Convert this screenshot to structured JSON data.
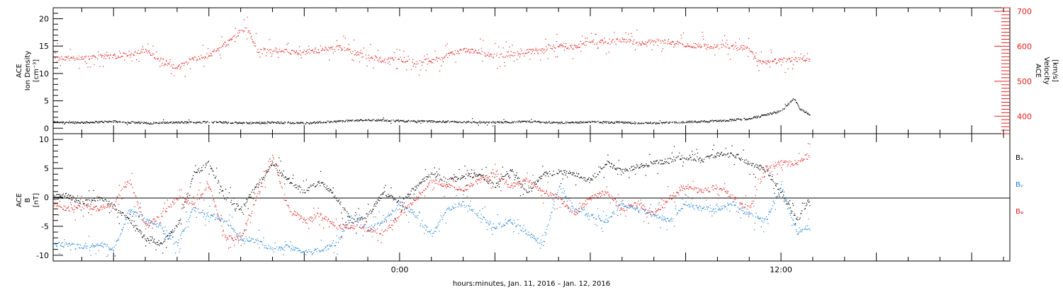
{
  "chart_data": [
    {
      "type": "scatter",
      "panel": "top",
      "ylabel_left": [
        "ACE",
        "Ion Density",
        "[cm⁻³]"
      ],
      "ylabel_right": [
        "ACE",
        "Velocity",
        "[km/s]"
      ],
      "ylim_left": [
        -1,
        22
      ],
      "yticks_left": [
        "0",
        "5",
        "10",
        "15",
        "20"
      ],
      "ylim_right": [
        350,
        710
      ],
      "yticks_right": [
        "400",
        "500",
        "600",
        "700"
      ],
      "x_range_hours": [
        -10.9,
        19.2
      ],
      "series": [
        {
          "axis": "left",
          "color": "#000000",
          "points": [
            [
              -10.9,
              1.2
            ],
            [
              -10,
              1.1
            ],
            [
              -9,
              1.3
            ],
            [
              -8,
              1.0
            ],
            [
              -7,
              1.1
            ],
            [
              -6,
              1.2
            ],
            [
              -5,
              1.0
            ],
            [
              -4,
              1.1
            ],
            [
              -3,
              1.0
            ],
            [
              -2,
              1.3
            ],
            [
              -1,
              1.6
            ],
            [
              0,
              1.4
            ],
            [
              1,
              1.3
            ],
            [
              2,
              1.2
            ],
            [
              3,
              1.1
            ],
            [
              4,
              1.3
            ],
            [
              5,
              1.0
            ],
            [
              6,
              1.2
            ],
            [
              7,
              1.1
            ],
            [
              8,
              1.0
            ],
            [
              9,
              1.2
            ],
            [
              10,
              1.4
            ],
            [
              11,
              1.8
            ],
            [
              11.5,
              2.5
            ],
            [
              12,
              3.2
            ],
            [
              12.4,
              5.5
            ],
            [
              12.6,
              3.5
            ],
            [
              12.9,
              2.6
            ]
          ]
        },
        {
          "axis": "right",
          "color": "#e0201c",
          "points": [
            [
              -10.9,
              575
            ],
            [
              -10.5,
              565
            ],
            [
              -10,
              570
            ],
            [
              -9,
              572
            ],
            [
              -8.5,
              580
            ],
            [
              -8,
              588
            ],
            [
              -7.5,
              560
            ],
            [
              -7,
              540
            ],
            [
              -6.5,
              565
            ],
            [
              -6,
              575
            ],
            [
              -5.5,
              605
            ],
            [
              -5,
              645
            ],
            [
              -4.8,
              655
            ],
            [
              -4.5,
              590
            ],
            [
              -4,
              588
            ],
            [
              -3.5,
              585
            ],
            [
              -3,
              583
            ],
            [
              -2.5,
              590
            ],
            [
              -2,
              600
            ],
            [
              -1.5,
              585
            ],
            [
              -1,
              570
            ],
            [
              -0.5,
              560
            ],
            [
              0,
              565
            ],
            [
              0.5,
              555
            ],
            [
              1,
              560
            ],
            [
              1.5,
              575
            ],
            [
              2,
              590
            ],
            [
              2.5,
              585
            ],
            [
              3,
              572
            ],
            [
              3.5,
              580
            ],
            [
              4,
              585
            ],
            [
              4.5,
              590
            ],
            [
              5,
              605
            ],
            [
              5.5,
              598
            ],
            [
              6,
              612
            ],
            [
              6.5,
              615
            ],
            [
              7,
              620
            ],
            [
              7.5,
              610
            ],
            [
              8,
              618
            ],
            [
              8.5,
              612
            ],
            [
              9,
              605
            ],
            [
              9.5,
              602
            ],
            [
              10,
              600
            ],
            [
              10.5,
              600
            ],
            [
              11,
              595
            ],
            [
              11.2,
              560
            ],
            [
              11.5,
              555
            ],
            [
              12,
              560
            ],
            [
              12.5,
              565
            ],
            [
              12.9,
              560
            ]
          ]
        }
      ]
    },
    {
      "type": "scatter",
      "panel": "bottom",
      "ylabel": [
        "ACE",
        "B",
        "[nT]"
      ],
      "ylim": [
        -11,
        11
      ],
      "yticks": [
        "-10",
        "-5",
        "0",
        "5",
        "10"
      ],
      "x_range_hours": [
        -10.9,
        19.2
      ],
      "legend": [
        {
          "text": "Bₓ",
          "color": "#000000"
        },
        {
          "text": "Bᵧ",
          "color": "#1a7fd4"
        },
        {
          "text": "Bᵩ",
          "color": "#e0201c"
        }
      ],
      "series": [
        {
          "name": "Bₓ",
          "color": "#000000",
          "points": [
            [
              -10.9,
              0
            ],
            [
              -10.5,
              0.5
            ],
            [
              -10,
              -1
            ],
            [
              -9.5,
              0
            ],
            [
              -9,
              -1.5
            ],
            [
              -8.5,
              -4
            ],
            [
              -8,
              -7
            ],
            [
              -7.5,
              -8
            ],
            [
              -7,
              -5
            ],
            [
              -6.5,
              4
            ],
            [
              -6,
              6
            ],
            [
              -5.5,
              0
            ],
            [
              -5,
              -2
            ],
            [
              -4.5,
              2
            ],
            [
              -4,
              6
            ],
            [
              -3.5,
              3
            ],
            [
              -3,
              1
            ],
            [
              -2.5,
              3
            ],
            [
              -2,
              0
            ],
            [
              -1.5,
              -4
            ],
            [
              -1,
              -3
            ],
            [
              -0.5,
              1
            ],
            [
              0,
              -1
            ],
            [
              0.5,
              2
            ],
            [
              1,
              4
            ],
            [
              1.5,
              3
            ],
            [
              2,
              3.5
            ],
            [
              2.5,
              4
            ],
            [
              3,
              2
            ],
            [
              3.5,
              5
            ],
            [
              4,
              1
            ],
            [
              4.5,
              4
            ],
            [
              5,
              4.5
            ],
            [
              5.5,
              4
            ],
            [
              6,
              3
            ],
            [
              6.5,
              6
            ],
            [
              7,
              4.5
            ],
            [
              7.5,
              5.5
            ],
            [
              8,
              6
            ],
            [
              8.5,
              6.5
            ],
            [
              9,
              7
            ],
            [
              9.5,
              6.5
            ],
            [
              10,
              7.5
            ],
            [
              10.5,
              7.5
            ],
            [
              11,
              6
            ],
            [
              11.5,
              5
            ],
            [
              12,
              1
            ],
            [
              12.5,
              -4
            ],
            [
              12.9,
              0
            ]
          ]
        },
        {
          "name": "Bᵧ",
          "color": "#1a7fd4",
          "points": [
            [
              -10.9,
              -8
            ],
            [
              -10.5,
              -8
            ],
            [
              -10,
              -8.5
            ],
            [
              -9.5,
              -8
            ],
            [
              -9,
              -9
            ],
            [
              -8.5,
              -2
            ],
            [
              -8,
              -4
            ],
            [
              -7.5,
              -5
            ],
            [
              -7,
              -8
            ],
            [
              -6.5,
              -2
            ],
            [
              -6,
              -3
            ],
            [
              -5.5,
              -4
            ],
            [
              -5,
              -7
            ],
            [
              -4.5,
              -7.5
            ],
            [
              -4,
              -9
            ],
            [
              -3.5,
              -8.5
            ],
            [
              -3,
              -9.5
            ],
            [
              -2.5,
              -9
            ],
            [
              -2,
              -8
            ],
            [
              -1.5,
              -3
            ],
            [
              -1,
              -5.5
            ],
            [
              -0.5,
              -4
            ],
            [
              0,
              -1
            ],
            [
              0.5,
              -3
            ],
            [
              1,
              -6.5
            ],
            [
              1.5,
              -2
            ],
            [
              2,
              -1
            ],
            [
              2.5,
              -3
            ],
            [
              3,
              -5
            ],
            [
              3.5,
              -4
            ],
            [
              4,
              -6
            ],
            [
              4.5,
              -8
            ],
            [
              5,
              2
            ],
            [
              5.5,
              -2
            ],
            [
              6,
              -3
            ],
            [
              6.5,
              -4
            ],
            [
              7,
              -1
            ],
            [
              7.5,
              -2
            ],
            [
              8,
              -3
            ],
            [
              8.5,
              -4
            ],
            [
              9,
              -1
            ],
            [
              9.5,
              -2
            ],
            [
              10,
              -2
            ],
            [
              10.5,
              -1
            ],
            [
              11,
              -3
            ],
            [
              11.5,
              -4
            ],
            [
              12,
              2
            ],
            [
              12.5,
              -6
            ],
            [
              12.9,
              -5
            ]
          ]
        },
        {
          "name": "Bᵩ",
          "color": "#e0201c",
          "points": [
            [
              -10.9,
              -1
            ],
            [
              -10.5,
              -2
            ],
            [
              -10,
              -1.5
            ],
            [
              -9.5,
              -2
            ],
            [
              -9,
              -1
            ],
            [
              -8.5,
              3
            ],
            [
              -8,
              -5
            ],
            [
              -7.5,
              -3
            ],
            [
              -7,
              0
            ],
            [
              -6.5,
              -1
            ],
            [
              -6,
              2
            ],
            [
              -5.5,
              -7
            ],
            [
              -5,
              -7
            ],
            [
              -4.5,
              0
            ],
            [
              -4,
              7
            ],
            [
              -3.5,
              -2
            ],
            [
              -3,
              -4
            ],
            [
              -2.5,
              -3
            ],
            [
              -2,
              -5
            ],
            [
              -1.5,
              -5
            ],
            [
              -1,
              -5.5
            ],
            [
              -0.5,
              -6
            ],
            [
              0,
              -3
            ],
            [
              0.5,
              0
            ],
            [
              1,
              3
            ],
            [
              1.5,
              2
            ],
            [
              2,
              1.5
            ],
            [
              2.5,
              3
            ],
            [
              3,
              4
            ],
            [
              3.5,
              2
            ],
            [
              4,
              3
            ],
            [
              4.5,
              1
            ],
            [
              5,
              0
            ],
            [
              5.5,
              -3
            ],
            [
              6,
              0
            ],
            [
              6.5,
              1
            ],
            [
              7,
              -2
            ],
            [
              7.5,
              -1
            ],
            [
              8,
              -3
            ],
            [
              8.5,
              0
            ],
            [
              9,
              2
            ],
            [
              9.5,
              1
            ],
            [
              10,
              2
            ],
            [
              10.5,
              0
            ],
            [
              11,
              -2
            ],
            [
              11.5,
              5
            ],
            [
              12,
              6
            ],
            [
              12.5,
              6
            ],
            [
              12.9,
              7.5
            ]
          ]
        }
      ]
    }
  ],
  "x_axis": {
    "tick_labels": [
      {
        "text": "0:00",
        "hour": 0
      },
      {
        "text": "12:00",
        "hour": 12
      }
    ],
    "xlabel": "hours:minutes, Jan. 11, 2016 – Jan. 12, 2016"
  }
}
